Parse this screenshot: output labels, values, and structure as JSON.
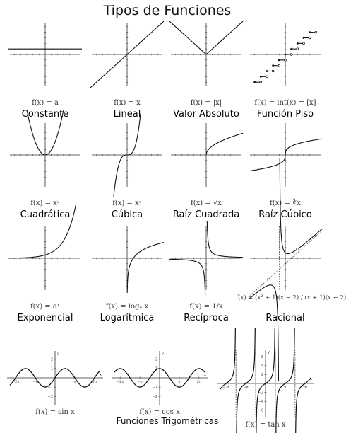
{
  "title": "Tipos de Funciones",
  "functions": [
    {
      "formula": "f(x) = a",
      "name": "Constante"
    },
    {
      "formula": "f(x) = |x|",
      "name": "Valor Absoluto"
    },
    {
      "formula": "f(x) = x",
      "name": "Lineal"
    },
    {
      "formula": "f(x) = int(x) = [x]",
      "name": "Función Piso"
    },
    {
      "formula": "f(x) = x²",
      "name": "Cuadrática"
    },
    {
      "formula": "f(x) = x³",
      "name": "Cúbica"
    },
    {
      "formula": "f(x) = √x",
      "name": "Raíz Cuadrada"
    },
    {
      "formula": "f(x) = ∛x",
      "name": "Raíz Cúbico"
    },
    {
      "formula": "f(x) = aˣ",
      "name": "Exponencial"
    },
    {
      "formula": "f(x) = logₐ x",
      "name": "Logarítmica"
    },
    {
      "formula": "f(x) = 1/x",
      "name": "Recíproca"
    },
    {
      "formula": "f(x) = (x² + 1)(x − 2) / (x + 1)(x − 2)",
      "name": "Racional"
    }
  ],
  "trig": [
    {
      "formula": "f(x) = sin x"
    },
    {
      "formula": "f(x) = cos x"
    },
    {
      "formula": "f(x) = tan x"
    }
  ],
  "trig_ticks": {
    "x": [
      "−2π",
      "−π",
      "π",
      "2π"
    ],
    "y": [
      "2",
      "1",
      "−1",
      "−2"
    ],
    "y_tan": [
      "6",
      "4",
      "2",
      "−2",
      "−4",
      "−6"
    ],
    "axis_x": "x",
    "axis_y": "y"
  },
  "bottom_label": "Funciones Trigométricas",
  "colors": {
    "curve": "#111111",
    "axis": "#333333",
    "grid_tick": "#666666"
  }
}
